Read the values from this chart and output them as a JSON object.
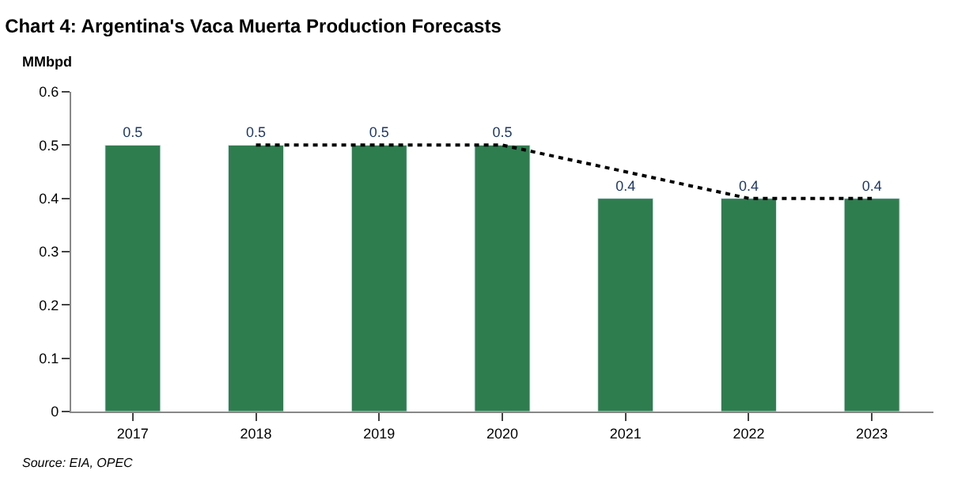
{
  "chart_data": {
    "type": "bar",
    "title": "Chart 4: Argentina's Vaca Muerta Production Forecasts",
    "ylabel": "MMbpd",
    "categories": [
      "2017",
      "2018",
      "2019",
      "2020",
      "2021",
      "2022",
      "2023"
    ],
    "series": [
      {
        "color": "#2e7d4f",
        "values": [
          0.5,
          0.5,
          0.5,
          0.5,
          0.4,
          0.4,
          0.4
        ],
        "value_labels": [
          "0.5",
          "0.5",
          "0.5",
          "0.5",
          "0.4",
          "0.4",
          "0.4"
        ]
      },
      {
        "type": "line",
        "color": "#000000",
        "line_style": "dotted",
        "marker": "none",
        "values": [
          null,
          0.5,
          0.5,
          0.5,
          0.45,
          0.4,
          0.4
        ]
      }
    ],
    "ylim": [
      0,
      0.6
    ],
    "yticks": [
      0,
      0.1,
      0.2,
      0.3,
      0.4,
      0.5,
      0.6
    ],
    "annotations": [
      "Source: EIA, OPEC"
    ]
  }
}
